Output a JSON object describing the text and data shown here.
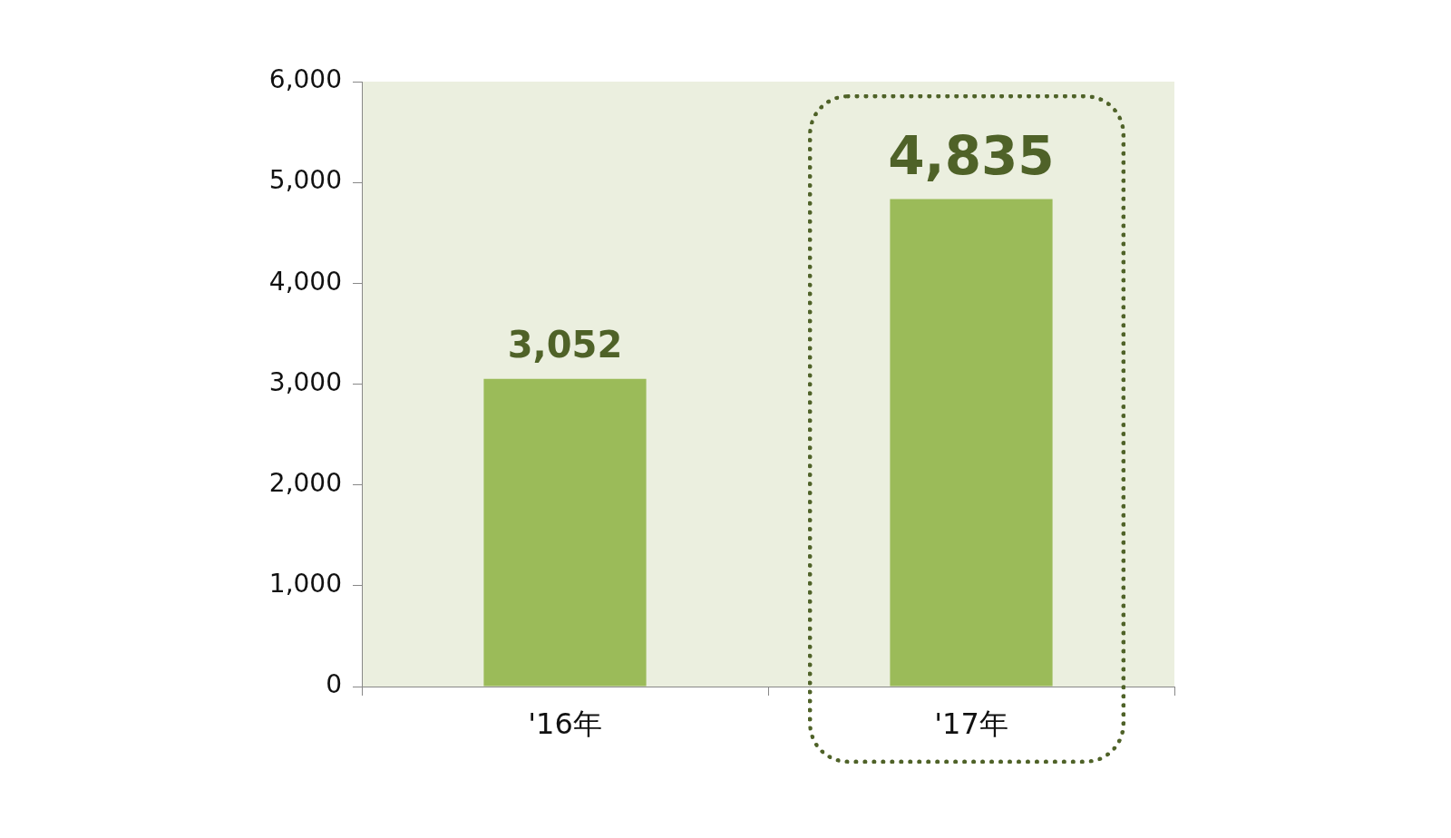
{
  "chart_data": {
    "type": "bar",
    "categories": [
      "'16年",
      "'17年"
    ],
    "values": [
      3052,
      4835
    ],
    "color": "#9bbb59",
    "value_labels": [
      "3,052",
      "4,835"
    ],
    "ylim": [
      0,
      6000
    ],
    "yticks": [
      {
        "value": 0,
        "label": "0"
      },
      {
        "value": 1000,
        "label": "1,000"
      },
      {
        "value": 2000,
        "label": "2,000"
      },
      {
        "value": 3000,
        "label": "3,000"
      },
      {
        "value": 4000,
        "label": "4,000"
      },
      {
        "value": 5000,
        "label": "5,000"
      },
      {
        "value": 6000,
        "label": "6,000"
      }
    ],
    "grid": false,
    "legend": false
  }
}
